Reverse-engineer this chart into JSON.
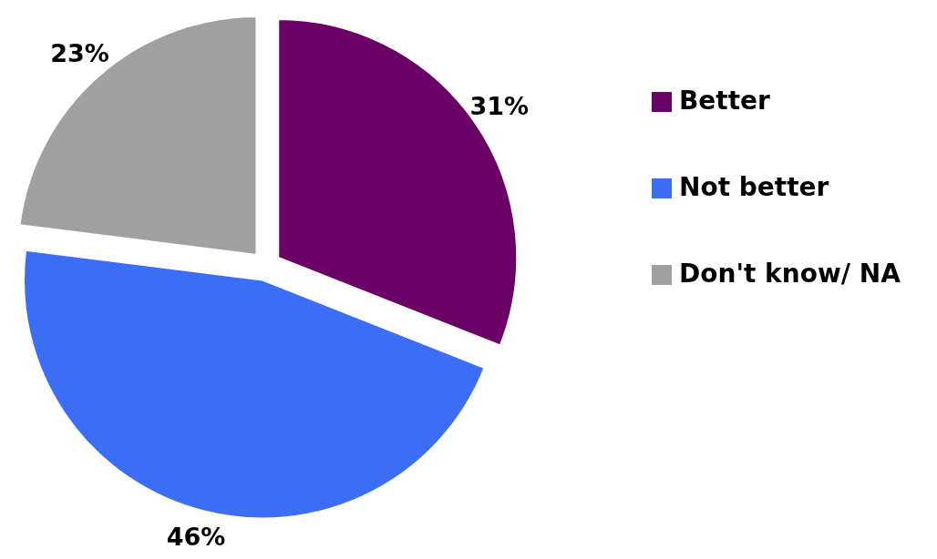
{
  "chart_data": {
    "type": "pie",
    "categories": [
      "Better",
      "Not better",
      "Don't know/ NA"
    ],
    "values": [
      31,
      46,
      23
    ],
    "colors": [
      "#6b0066",
      "#3b6ef5",
      "#a0a0a0"
    ],
    "value_labels": [
      "31%",
      "46%",
      "23%"
    ],
    "legend": "right"
  }
}
